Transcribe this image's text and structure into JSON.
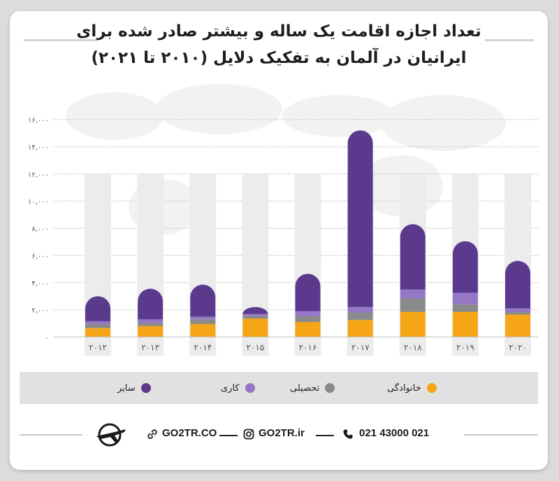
{
  "title": {
    "line1": "تعداد اجازه اقامت یک ساله و بیشتر صادر شده برای",
    "line2": "ایرانیان در آلمان به تفکیک دلایل (۲۰۱۰ تا ۲۰۲۱)"
  },
  "colors": {
    "family": "#f5a516",
    "study": "#8a8a8a",
    "work": "#9477c6",
    "other": "#5b3a8e",
    "track": "#ececec",
    "grid": "#bdbdbd"
  },
  "chart_data": {
    "type": "bar",
    "stacked": true,
    "categories": [
      "۲۰۱۲",
      "۲۰۱۳",
      "۲۰۱۴",
      "۲۰۱۵",
      "۲۰۱۶",
      "۲۰۱۷",
      "۲۰۱۸",
      "۲۰۱۹",
      "۲۰۲۰"
    ],
    "y_ticks": [
      "۰",
      "۲,۰۰۰",
      "۴,۰۰۰",
      "۶,۰۰۰",
      "۸,۰۰۰",
      "۱۰,۰۰۰",
      "۱۲,۰۰۰",
      "۱۴,۰۰۰",
      "۱۶,۰۰۰"
    ],
    "ylim": [
      0,
      16000
    ],
    "grid": true,
    "legend_position": "bottom",
    "series": [
      {
        "name": "خانوادگی",
        "key": "family",
        "values": [
          650,
          800,
          950,
          1350,
          1100,
          1250,
          1850,
          1850,
          1650
        ]
      },
      {
        "name": "تحصیلی",
        "key": "study",
        "values": [
          300,
          250,
          350,
          200,
          450,
          550,
          1000,
          550,
          200
        ]
      },
      {
        "name": "کاری",
        "key": "work",
        "values": [
          200,
          250,
          200,
          150,
          350,
          400,
          650,
          850,
          250
        ]
      },
      {
        "name": "سایر",
        "key": "other",
        "values": [
          1850,
          2250,
          2350,
          500,
          2750,
          13000,
          4800,
          3800,
          3500
        ]
      }
    ]
  },
  "legend": [
    "خانوادگی",
    "تحصیلی",
    "کاری",
    "سایر"
  ],
  "footer": {
    "phone": "021 43000 021",
    "instagram": "GO2TR.ir",
    "website": "GO2TR.CO"
  }
}
